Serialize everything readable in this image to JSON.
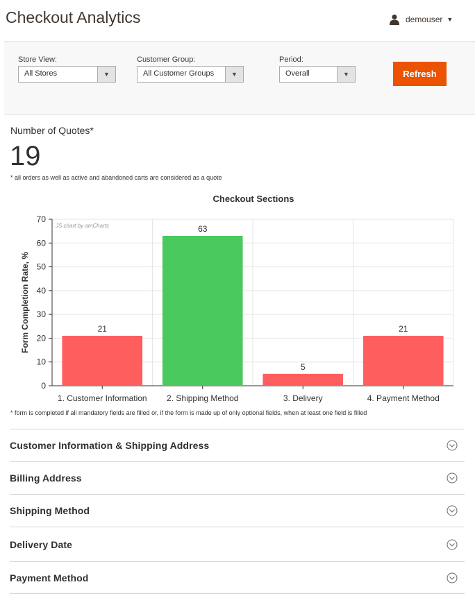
{
  "header": {
    "title": "Checkout Analytics",
    "user": "demouser"
  },
  "filters": {
    "store_view": {
      "label": "Store View:",
      "value": "All Stores"
    },
    "customer_group": {
      "label": "Customer Group:",
      "value": "All Customer Groups"
    },
    "period": {
      "label": "Period:",
      "value": "Overall"
    },
    "refresh_label": "Refresh"
  },
  "quotes": {
    "title": "Number of Quotes*",
    "count": "19",
    "note": "* all orders as well as active and abandoned carts are considered as a quote"
  },
  "chart_data": {
    "type": "bar",
    "title": "Checkout Sections",
    "ylabel": "Form Completion Rate, %",
    "xlabel": "",
    "categories": [
      "1. Customer Information",
      "2. Shipping Method",
      "3. Delivery",
      "4. Payment Method"
    ],
    "values": [
      21,
      63,
      5,
      21
    ],
    "colors": [
      "#ff5e5e",
      "#4ac95e",
      "#ff5e5e",
      "#ff5e5e"
    ],
    "ylim": [
      0,
      70
    ],
    "yticks": [
      0,
      10,
      20,
      30,
      40,
      50,
      60,
      70
    ],
    "grid": true,
    "credit": "JS chart by amCharts"
  },
  "form_note": "* form is completed if all mandatory fields are filled or, if the form is made up of only optional fields, when at least one field is filled",
  "sections": [
    {
      "label": "Customer Information & Shipping Address"
    },
    {
      "label": "Billing Address"
    },
    {
      "label": "Shipping Method"
    },
    {
      "label": "Delivery Date"
    },
    {
      "label": "Payment Method"
    }
  ]
}
